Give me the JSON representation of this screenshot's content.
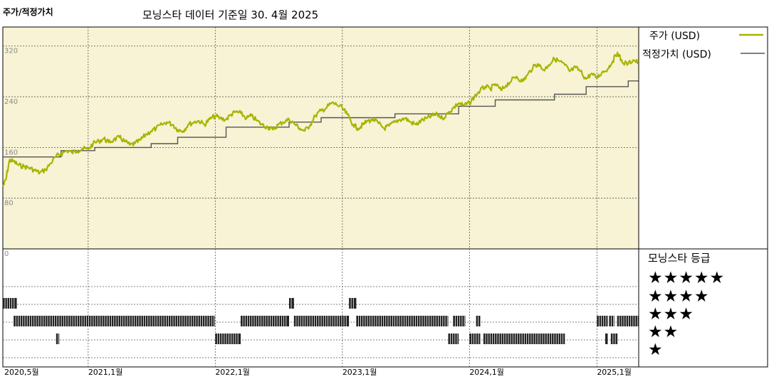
{
  "header": {
    "title": "주가/적정가치",
    "subtitle": "모닝스타 데이터 기준일 30. 4월 2025"
  },
  "legend": {
    "price": "주가 (USD)",
    "fair": "적정가치 (USD)"
  },
  "rating": {
    "title": "모닝스타 등급",
    "rows": [
      {
        "stars": 5,
        "glyphs": "★★★★★"
      },
      {
        "stars": 4,
        "glyphs": "★★★★"
      },
      {
        "stars": 3,
        "glyphs": "★★★"
      },
      {
        "stars": 2,
        "glyphs": "★★"
      },
      {
        "stars": 1,
        "glyphs": "★"
      }
    ]
  },
  "colors": {
    "panel_bg": "#f7f3d4",
    "price": "#a8b400",
    "fair": "#555555",
    "rating_bar": "#222222"
  },
  "chart_data": {
    "type": "line",
    "x_unit": "months since 2020-05",
    "xlim": [
      "2020-05",
      "2025-05"
    ],
    "ylim": [
      0,
      350
    ],
    "yticks": [
      {
        "value": 320,
        "label": "320"
      },
      {
        "value": 240,
        "label": "240"
      },
      {
        "value": 160,
        "label": "160"
      },
      {
        "value": 80,
        "label": "80"
      },
      {
        "value": 0,
        "label": "0"
      }
    ],
    "xticks": [
      {
        "date": "2020-05",
        "label": "2020,5월"
      },
      {
        "date": "2021-01",
        "label": "2021,1월"
      },
      {
        "date": "2022-01",
        "label": "2022,1월"
      },
      {
        "date": "2023-01",
        "label": "2023,1월"
      },
      {
        "date": "2024-01",
        "label": "2024,1월"
      },
      {
        "date": "2025-01",
        "label": "2025,1월"
      }
    ],
    "series": [
      {
        "name": "주가 (USD)",
        "points": [
          [
            "2020-05-01",
            98
          ],
          [
            "2020-05-10",
            110
          ],
          [
            "2020-05-20",
            140
          ],
          [
            "2020-06-01",
            138
          ],
          [
            "2020-06-15",
            132
          ],
          [
            "2020-07-01",
            130
          ],
          [
            "2020-07-15",
            128
          ],
          [
            "2020-08-01",
            124
          ],
          [
            "2020-08-15",
            120
          ],
          [
            "2020-09-01",
            125
          ],
          [
            "2020-09-15",
            135
          ],
          [
            "2020-10-01",
            146
          ],
          [
            "2020-10-15",
            150
          ],
          [
            "2020-11-01",
            155
          ],
          [
            "2020-11-15",
            152
          ],
          [
            "2020-12-01",
            155
          ],
          [
            "2020-12-15",
            158
          ],
          [
            "2021-01-01",
            157
          ],
          [
            "2021-01-15",
            166
          ],
          [
            "2021-02-01",
            170
          ],
          [
            "2021-02-15",
            174
          ],
          [
            "2021-03-01",
            168
          ],
          [
            "2021-03-15",
            172
          ],
          [
            "2021-04-01",
            176
          ],
          [
            "2021-04-15",
            170
          ],
          [
            "2021-05-01",
            164
          ],
          [
            "2021-05-15",
            166
          ],
          [
            "2021-06-01",
            172
          ],
          [
            "2021-06-15",
            180
          ],
          [
            "2021-07-01",
            186
          ],
          [
            "2021-07-15",
            190
          ],
          [
            "2021-08-01",
            196
          ],
          [
            "2021-08-15",
            200
          ],
          [
            "2021-09-01",
            196
          ],
          [
            "2021-09-15",
            188
          ],
          [
            "2021-10-01",
            186
          ],
          [
            "2021-10-15",
            196
          ],
          [
            "2021-11-01",
            200
          ],
          [
            "2021-11-15",
            202
          ],
          [
            "2021-12-01",
            196
          ],
          [
            "2021-12-15",
            204
          ],
          [
            "2022-01-01",
            210
          ],
          [
            "2022-01-15",
            206
          ],
          [
            "2022-02-01",
            204
          ],
          [
            "2022-02-15",
            212
          ],
          [
            "2022-03-01",
            216
          ],
          [
            "2022-03-15",
            214
          ],
          [
            "2022-04-01",
            206
          ],
          [
            "2022-04-15",
            210
          ],
          [
            "2022-05-01",
            202
          ],
          [
            "2022-05-15",
            196
          ],
          [
            "2022-06-01",
            192
          ],
          [
            "2022-06-15",
            188
          ],
          [
            "2022-07-01",
            196
          ],
          [
            "2022-07-15",
            200
          ],
          [
            "2022-08-01",
            204
          ],
          [
            "2022-08-15",
            198
          ],
          [
            "2022-09-01",
            190
          ],
          [
            "2022-09-15",
            186
          ],
          [
            "2022-10-01",
            196
          ],
          [
            "2022-10-15",
            210
          ],
          [
            "2022-11-01",
            218
          ],
          [
            "2022-11-15",
            222
          ],
          [
            "2022-12-01",
            230
          ],
          [
            "2022-12-15",
            228
          ],
          [
            "2023-01-01",
            222
          ],
          [
            "2023-01-15",
            212
          ],
          [
            "2023-02-01",
            196
          ],
          [
            "2023-02-15",
            190
          ],
          [
            "2023-03-01",
            196
          ],
          [
            "2023-03-15",
            202
          ],
          [
            "2023-04-01",
            204
          ],
          [
            "2023-04-15",
            198
          ],
          [
            "2023-05-01",
            190
          ],
          [
            "2023-05-15",
            194
          ],
          [
            "2023-06-01",
            200
          ],
          [
            "2023-06-15",
            204
          ],
          [
            "2023-07-01",
            206
          ],
          [
            "2023-07-15",
            200
          ],
          [
            "2023-08-01",
            196
          ],
          [
            "2023-08-15",
            202
          ],
          [
            "2023-09-01",
            206
          ],
          [
            "2023-09-15",
            210
          ],
          [
            "2023-10-01",
            212
          ],
          [
            "2023-10-15",
            206
          ],
          [
            "2023-11-01",
            214
          ],
          [
            "2023-11-15",
            222
          ],
          [
            "2023-12-01",
            230
          ],
          [
            "2023-12-15",
            226
          ],
          [
            "2024-01-01",
            230
          ],
          [
            "2024-01-15",
            240
          ],
          [
            "2024-02-01",
            250
          ],
          [
            "2024-02-15",
            256
          ],
          [
            "2024-03-01",
            252
          ],
          [
            "2024-03-15",
            260
          ],
          [
            "2024-04-01",
            250
          ],
          [
            "2024-04-15",
            258
          ],
          [
            "2024-05-01",
            266
          ],
          [
            "2024-05-15",
            272
          ],
          [
            "2024-06-01",
            264
          ],
          [
            "2024-06-15",
            274
          ],
          [
            "2024-07-01",
            286
          ],
          [
            "2024-07-15",
            292
          ],
          [
            "2024-08-01",
            282
          ],
          [
            "2024-08-15",
            290
          ],
          [
            "2024-09-01",
            300
          ],
          [
            "2024-09-15",
            296
          ],
          [
            "2024-10-01",
            290
          ],
          [
            "2024-10-15",
            280
          ],
          [
            "2024-11-01",
            286
          ],
          [
            "2024-11-15",
            280
          ],
          [
            "2024-12-01",
            268
          ],
          [
            "2024-12-15",
            276
          ],
          [
            "2025-01-01",
            270
          ],
          [
            "2025-01-15",
            278
          ],
          [
            "2025-02-01",
            284
          ],
          [
            "2025-02-15",
            296
          ],
          [
            "2025-03-01",
            310
          ],
          [
            "2025-03-15",
            294
          ],
          [
            "2025-04-01",
            292
          ],
          [
            "2025-04-15",
            298
          ],
          [
            "2025-04-30",
            294
          ]
        ]
      },
      {
        "name": "적정가치 (USD)",
        "step": true,
        "points": [
          [
            "2020-05-01",
            145
          ],
          [
            "2020-10-15",
            145
          ],
          [
            "2020-10-15",
            155
          ],
          [
            "2021-01-20",
            155
          ],
          [
            "2021-01-20",
            160
          ],
          [
            "2021-07-01",
            160
          ],
          [
            "2021-07-01",
            166
          ],
          [
            "2021-09-15",
            166
          ],
          [
            "2021-09-15",
            176
          ],
          [
            "2022-02-01",
            176
          ],
          [
            "2022-02-01",
            192
          ],
          [
            "2022-08-01",
            192
          ],
          [
            "2022-08-01",
            200
          ],
          [
            "2022-11-01",
            200
          ],
          [
            "2022-11-01",
            207
          ],
          [
            "2023-06-01",
            207
          ],
          [
            "2023-06-01",
            213
          ],
          [
            "2023-12-01",
            213
          ],
          [
            "2023-12-01",
            225
          ],
          [
            "2024-03-15",
            225
          ],
          [
            "2024-03-15",
            235
          ],
          [
            "2024-09-01",
            235
          ],
          [
            "2024-09-01",
            244
          ],
          [
            "2024-12-01",
            244
          ],
          [
            "2024-12-01",
            256
          ],
          [
            "2025-04-01",
            256
          ],
          [
            "2025-04-01",
            265
          ],
          [
            "2025-04-30",
            265
          ]
        ]
      }
    ],
    "ratings": [
      {
        "stars": 5,
        "periods": []
      },
      {
        "stars": 4,
        "periods": [
          [
            "2020-05-01",
            "2020-06-10"
          ],
          [
            "2022-08-01",
            "2022-08-15"
          ],
          [
            "2023-01-20",
            "2023-02-10"
          ]
        ]
      },
      {
        "stars": 3,
        "periods": [
          [
            "2020-06-01",
            "2021-12-31"
          ],
          [
            "2022-03-15",
            "2022-08-01"
          ],
          [
            "2022-08-15",
            "2023-01-20"
          ],
          [
            "2023-02-10",
            "2023-11-01"
          ],
          [
            "2023-11-15",
            "2023-12-20"
          ],
          [
            "2024-01-20",
            "2024-02-01"
          ],
          [
            "2025-01-01",
            "2025-02-01"
          ],
          [
            "2025-02-05",
            "2025-02-20"
          ],
          [
            "2025-02-28",
            "2025-04-30"
          ]
        ]
      },
      {
        "stars": 2,
        "periods": [
          [
            "2020-10-01",
            "2020-10-10"
          ],
          [
            "2022-01-01",
            "2022-03-15"
          ],
          [
            "2023-11-01",
            "2023-12-01"
          ],
          [
            "2024-01-01",
            "2024-02-01"
          ],
          [
            "2024-02-10",
            "2024-10-01"
          ],
          [
            "2025-01-25",
            "2025-02-01"
          ],
          [
            "2025-02-10",
            "2025-03-01"
          ]
        ]
      },
      {
        "stars": 1,
        "periods": []
      }
    ]
  }
}
